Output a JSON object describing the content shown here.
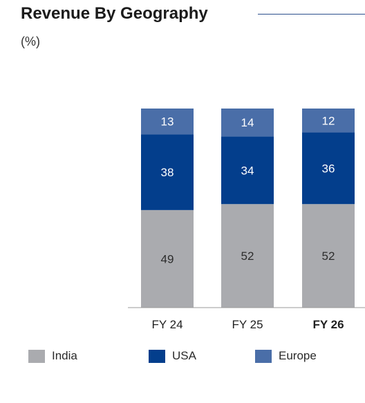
{
  "header": {
    "title": "Revenue By Geography",
    "subtitle": "(%)"
  },
  "chart_data": {
    "type": "bar",
    "stacked": true,
    "categories": [
      "FY 24",
      "FY 25",
      "FY 26"
    ],
    "highlight_category": "FY 26",
    "series": [
      {
        "name": "India",
        "values": [
          49,
          52,
          52
        ],
        "color": "#aaabaf"
      },
      {
        "name": "USA",
        "values": [
          38,
          34,
          36
        ],
        "color": "#033e8c"
      },
      {
        "name": "Europe",
        "values": [
          13,
          14,
          12
        ],
        "color": "#4a6ea8"
      }
    ],
    "ylim": [
      0,
      100
    ],
    "grid": false,
    "data_labels": true,
    "legend_position": "bottom"
  }
}
